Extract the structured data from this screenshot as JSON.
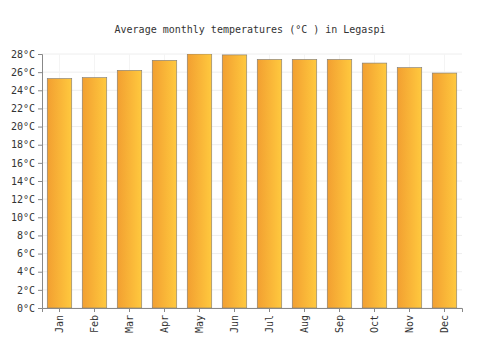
{
  "chart_data": {
    "type": "bar",
    "title": "Average monthly temperatures (°C ) in Legaspi",
    "categories": [
      "Jan",
      "Feb",
      "Mar",
      "Apr",
      "May",
      "Jun",
      "Jul",
      "Aug",
      "Sep",
      "Oct",
      "Nov",
      "Dec"
    ],
    "values": [
      25.3,
      25.4,
      26.2,
      27.3,
      28.0,
      27.9,
      27.4,
      27.4,
      27.4,
      27.0,
      26.5,
      25.9
    ],
    "color": "#ffa834",
    "ylim": [
      0,
      28
    ],
    "yticks": [
      {
        "value": 0,
        "label": "0°C"
      },
      {
        "value": 2,
        "label": "2°C"
      },
      {
        "value": 4,
        "label": "4°C"
      },
      {
        "value": 6,
        "label": "6°C"
      },
      {
        "value": 8,
        "label": "8°C"
      },
      {
        "value": 10,
        "label": "10°C"
      },
      {
        "value": 12,
        "label": "12°C"
      },
      {
        "value": 14,
        "label": "14°C"
      },
      {
        "value": 16,
        "label": "16°C"
      },
      {
        "value": 18,
        "label": "18°C"
      },
      {
        "value": 20,
        "label": "20°C"
      },
      {
        "value": 22,
        "label": "22°C"
      },
      {
        "value": 24,
        "label": "24°C"
      },
      {
        "value": 26,
        "label": "26°C"
      },
      {
        "value": 28,
        "label": "28°C"
      }
    ],
    "grid": true
  }
}
